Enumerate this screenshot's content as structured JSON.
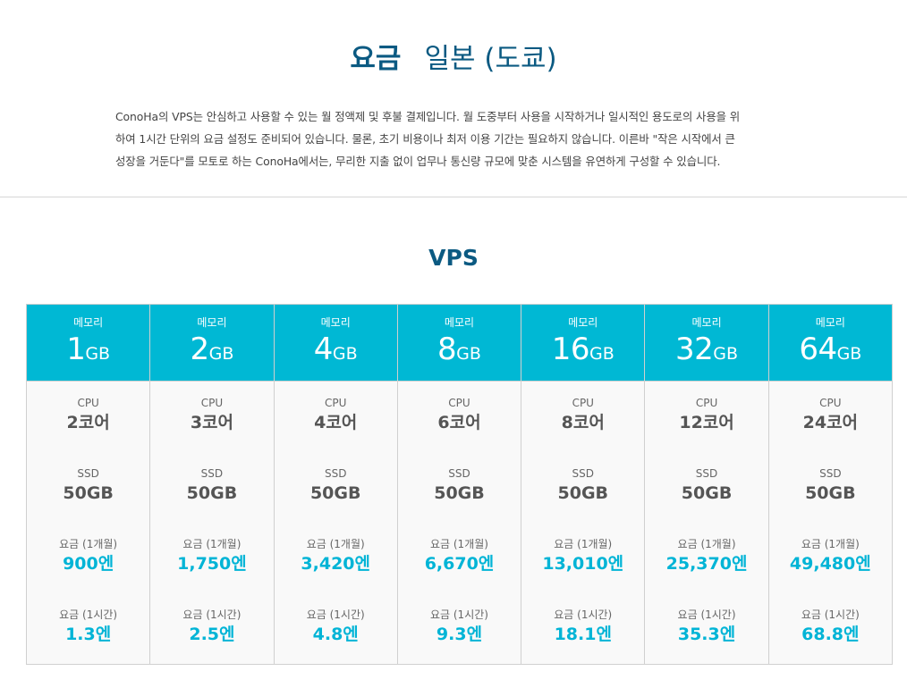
{
  "header": {
    "title_strong": "요금",
    "title_region": "일본 (도쿄)"
  },
  "intro": {
    "lines": [
      "ConoHa의 VPS는 안심하고 사용할 수 있는 월 정액제 및 후불 결제입니다. 월 도중부터 사용을 시작하거나 일시적인 용도로의 사용을 위",
      "하여 1시간 단위의 요금 설정도 준비되어 있습니다. 물론, 초기 비용이나 최저 이용 기간는 필요하지 않습니다. 이른바 \"작은 시작에서 큰",
      "성장을 거둔다\"를 모토로 하는 ConoHa에서는, 무리한 지출 없이 업무나 통신량 규모에 맞춘 시스템을 유연하게 구성할 수 있습니다."
    ]
  },
  "section": {
    "title": "VPS"
  },
  "labels": {
    "memory": "메모리",
    "cpu": "CPU",
    "ssd": "SSD",
    "monthly": "요금 (1개월)",
    "hourly": "요금 (1시간)"
  },
  "plans": [
    {
      "memory": "1",
      "unit": "GB",
      "cpu": "2코어",
      "ssd": "50GB",
      "monthly": "900엔",
      "hourly": "1.3엔"
    },
    {
      "memory": "2",
      "unit": "GB",
      "cpu": "3코어",
      "ssd": "50GB",
      "monthly": "1,750엔",
      "hourly": "2.5엔"
    },
    {
      "memory": "4",
      "unit": "GB",
      "cpu": "4코어",
      "ssd": "50GB",
      "monthly": "3,420엔",
      "hourly": "4.8엔"
    },
    {
      "memory": "8",
      "unit": "GB",
      "cpu": "6코어",
      "ssd": "50GB",
      "monthly": "6,670엔",
      "hourly": "9.3엔"
    },
    {
      "memory": "16",
      "unit": "GB",
      "cpu": "8코어",
      "ssd": "50GB",
      "monthly": "13,010엔",
      "hourly": "18.1엔"
    },
    {
      "memory": "32",
      "unit": "GB",
      "cpu": "12코어",
      "ssd": "50GB",
      "monthly": "25,370엔",
      "hourly": "35.3엔"
    },
    {
      "memory": "64",
      "unit": "GB",
      "cpu": "24코어",
      "ssd": "50GB",
      "monthly": "49,480엔",
      "hourly": "68.8엔"
    }
  ],
  "colors": {
    "title": "#0b5a82",
    "header_bg": "#00b8d4",
    "price": "#00b4d6",
    "border": "#d0d0d0"
  }
}
